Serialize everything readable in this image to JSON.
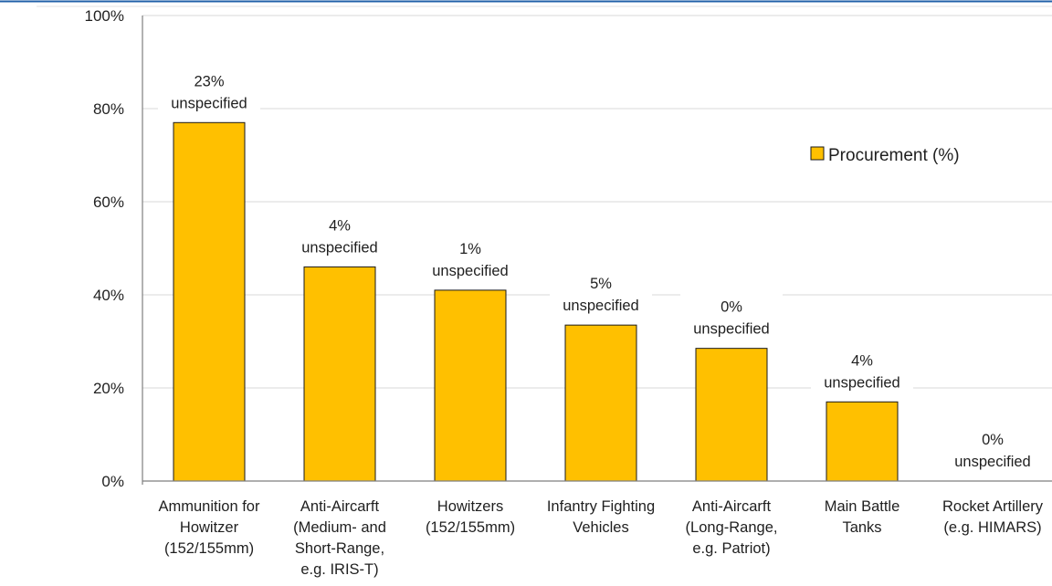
{
  "chart_data": {
    "type": "bar",
    "categories": [
      [
        "Ammunition for",
        "Howitzer",
        "(152/155mm)"
      ],
      [
        "Anti-Aircarft",
        "(Medium- and",
        "Short-Range,",
        "e.g. IRIS-T)"
      ],
      [
        "Howitzers",
        "(152/155mm)"
      ],
      [
        "Infantry Fighting",
        "Vehicles"
      ],
      [
        "Anti-Aircarft",
        "(Long-Range,",
        "e.g. Patriot)"
      ],
      [
        "Main Battle",
        "Tanks"
      ],
      [
        "Rocket Artillery",
        "(e.g. HIMARS)"
      ]
    ],
    "series": [
      {
        "name": "Procurement (%)",
        "values": [
          77,
          46,
          41,
          33.5,
          28.5,
          17,
          0
        ]
      }
    ],
    "data_labels": [
      [
        "23%",
        "unspecified"
      ],
      [
        "4%",
        "unspecified"
      ],
      [
        "1%",
        "unspecified"
      ],
      [
        "5%",
        "unspecified"
      ],
      [
        "0%",
        "unspecified"
      ],
      [
        "4%",
        "unspecified"
      ],
      [
        "0%",
        "unspecified"
      ]
    ],
    "y_ticks": [
      "0%",
      "20%",
      "40%",
      "60%",
      "80%",
      "100%"
    ],
    "ylim": [
      0,
      100
    ],
    "grid": true,
    "legend_position": "top-right",
    "colors": {
      "bar": "#FFC000",
      "bar_edge": "#1a1a1a",
      "grid": "#d9d9d9",
      "axis": "#7f7f7f",
      "top_rule": "#1f5fa8"
    }
  }
}
